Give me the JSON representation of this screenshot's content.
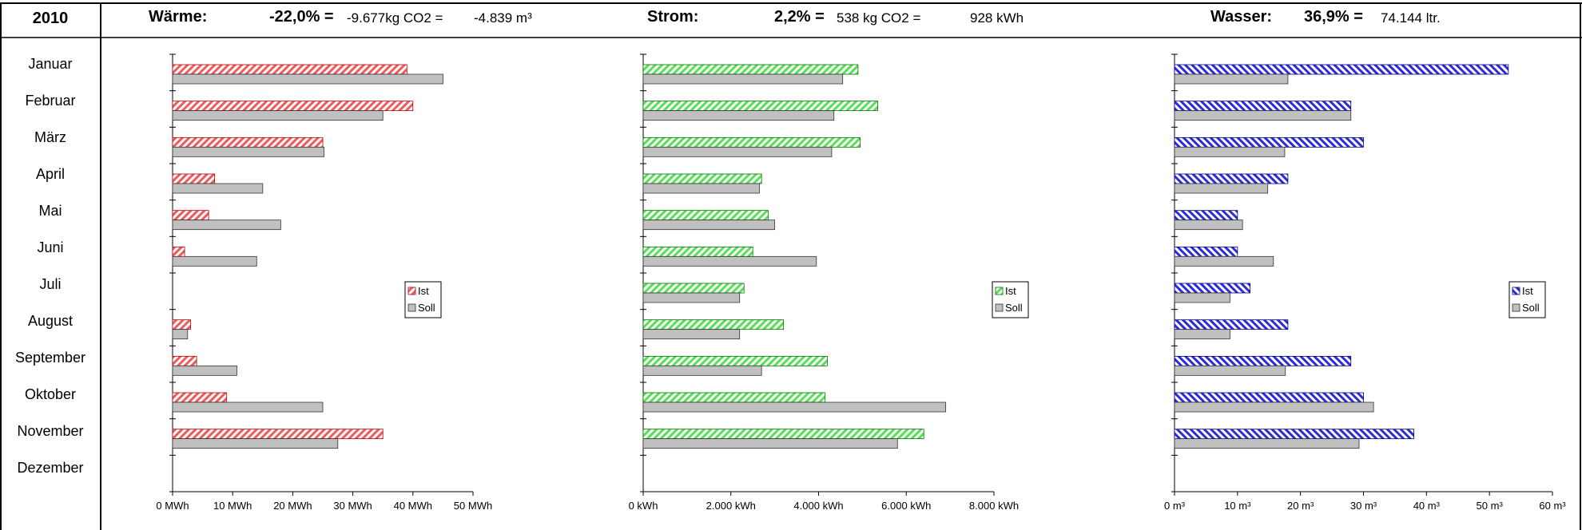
{
  "header": {
    "year": "2010",
    "waerme": {
      "label": "Wärme:",
      "percent": "-22,0% =",
      "detail": "-9.677kg CO2 =",
      "extra": "-4.839 m³"
    },
    "strom": {
      "label": "Strom:",
      "percent": "2,2% =",
      "detail": "538 kg CO2 =",
      "extra": "928 kWh"
    },
    "wasser": {
      "label": "Wasser:",
      "percent": "36,9% =",
      "detail": "74.144 ltr.",
      "extra": ""
    }
  },
  "months": [
    "Januar",
    "Februar",
    "März",
    "April",
    "Mai",
    "Juni",
    "Juli",
    "August",
    "September",
    "Oktober",
    "November",
    "Dezember"
  ],
  "colors": {
    "waerme": "#ef5a5a",
    "strom": "#66f266",
    "wasser": "#3b3be6",
    "soll": "#c0c0c0"
  },
  "chart_data": [
    {
      "type": "bar",
      "orientation": "horizontal",
      "categories": [
        "Januar",
        "Februar",
        "März",
        "April",
        "Mai",
        "Juni",
        "Juli",
        "August",
        "September",
        "Oktober",
        "November",
        "Dezember"
      ],
      "series": [
        {
          "name": "Ist",
          "values": [
            39,
            40,
            25,
            7,
            6,
            2,
            0,
            3,
            4,
            9,
            35,
            0
          ]
        },
        {
          "name": "Soll",
          "values": [
            45,
            35,
            25.2,
            15,
            18,
            14,
            0,
            2.5,
            10.7,
            25,
            27.5,
            0
          ]
        }
      ],
      "xlim": [
        0,
        50
      ],
      "x_ticks": [
        "0 MWh",
        "10 MWh",
        "20 MWh",
        "30 MWh",
        "40 MWh",
        "50 MWh"
      ],
      "legend": "right"
    },
    {
      "type": "bar",
      "orientation": "horizontal",
      "categories": [
        "Januar",
        "Februar",
        "März",
        "April",
        "Mai",
        "Juni",
        "Juli",
        "August",
        "September",
        "Oktober",
        "November",
        "Dezember"
      ],
      "series": [
        {
          "name": "Ist",
          "values": [
            4900,
            5350,
            4950,
            2700,
            2850,
            2500,
            2300,
            3200,
            4200,
            4150,
            6400,
            0
          ]
        },
        {
          "name": "Soll",
          "values": [
            4550,
            4350,
            4300,
            2650,
            3000,
            3950,
            2200,
            2200,
            2700,
            6900,
            5800,
            0
          ]
        }
      ],
      "xlim": [
        0,
        8000
      ],
      "x_ticks": [
        "0 kWh",
        "2.000 kWh",
        "4.000 kWh",
        "6.000 kWh",
        "8.000 kWh"
      ],
      "legend": "right"
    },
    {
      "type": "bar",
      "orientation": "horizontal",
      "categories": [
        "Januar",
        "Februar",
        "März",
        "April",
        "Mai",
        "Juni",
        "Juli",
        "August",
        "September",
        "Oktober",
        "November",
        "Dezember"
      ],
      "series": [
        {
          "name": "Ist",
          "values": [
            53,
            28,
            30,
            18,
            10,
            10,
            12,
            18,
            28,
            30,
            38,
            0
          ]
        },
        {
          "name": "Soll",
          "values": [
            18,
            28,
            17.5,
            14.8,
            10.8,
            15.7,
            8.8,
            8.8,
            17.6,
            31.6,
            29.3,
            0
          ]
        }
      ],
      "xlim": [
        0,
        60
      ],
      "x_ticks": [
        "0 m³",
        "10 m³",
        "20 m³",
        "30 m³",
        "40 m³",
        "50 m³",
        "60 m³"
      ],
      "legend": "right"
    }
  ]
}
